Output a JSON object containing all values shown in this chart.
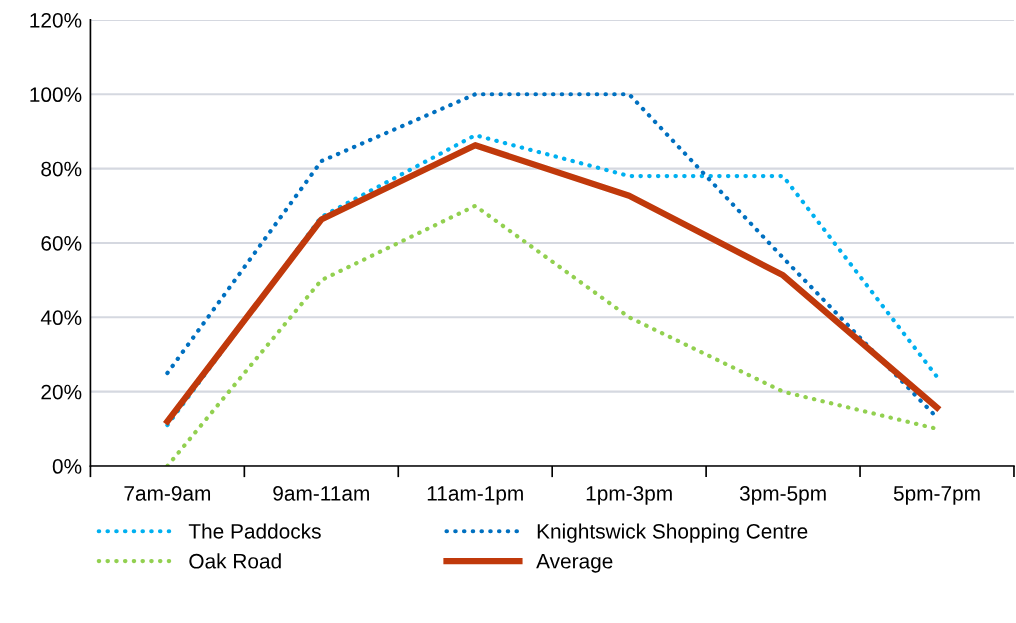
{
  "chart_data": {
    "type": "line",
    "categories": [
      "7am-9am",
      "9am-11am",
      "11am-1pm",
      "1pm-3pm",
      "3pm-5pm",
      "5pm-7pm"
    ],
    "series": [
      {
        "name": "The Paddocks",
        "color": "#00b0f0",
        "line_style": "dotted",
        "values": [
          0.11,
          0.67,
          0.89,
          0.78,
          0.78,
          0.24
        ]
      },
      {
        "name": "Knightswick Shopping Centre",
        "color": "#0070c0",
        "line_style": "dotted",
        "values": [
          0.25,
          0.82,
          1.0,
          1.0,
          0.56,
          0.13
        ]
      },
      {
        "name": "Oak Road",
        "color": "#92d050",
        "line_style": "dotted",
        "values": [
          0.0,
          0.5,
          0.7,
          0.4,
          0.2,
          0.1
        ]
      },
      {
        "name": "Average",
        "color": "#c0390b",
        "line_style": "solid",
        "values": [
          0.12,
          0.663,
          0.863,
          0.727,
          0.513,
          0.157
        ]
      }
    ],
    "ylim": [
      0,
      1.2
    ],
    "yticks": [
      {
        "value": 0,
        "label": "0%"
      },
      {
        "value": 0.2,
        "label": "20%"
      },
      {
        "value": 0.4,
        "label": "40%"
      },
      {
        "value": 0.6,
        "label": "60%"
      },
      {
        "value": 0.8,
        "label": "80%"
      },
      {
        "value": 1.0,
        "label": "100%"
      },
      {
        "value": 1.2,
        "label": "120%"
      }
    ],
    "grid": "y",
    "legend": "bottom",
    "marker": "none"
  }
}
